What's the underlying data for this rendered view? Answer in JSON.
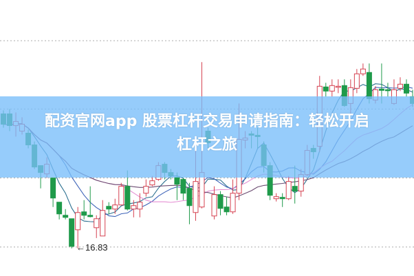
{
  "banner": {
    "title_line1": "配资官网app 股票杠杆交易申请指南：轻松开启",
    "title_line2": "杠杆之旅"
  },
  "chart_data": {
    "type": "candlestick",
    "title": "",
    "xlabel": "",
    "ylabel": "",
    "ylim": [
      16.03,
      24.03
    ],
    "grid": true,
    "gridlines": [
      22.85,
      20.87,
      18.87,
      16.87
    ],
    "low_annotation": {
      "text": "←16.83",
      "value": 16.83
    },
    "colors": {
      "up": "#d5404f",
      "down": "#1f9a4a",
      "ma_lines": [
        "#2b6f8f",
        "#3d63b8",
        "#e58fd3",
        "#6a4a70"
      ],
      "banner": "#8ccaf8"
    },
    "candles_ohlc": [
      [
        20.73,
        20.83,
        20.33,
        20.43
      ],
      [
        20.73,
        20.87,
        20.23,
        20.39
      ],
      [
        20.39,
        20.77,
        20.07,
        20.51
      ],
      [
        20.23,
        20.63,
        20.13,
        20.43
      ],
      [
        20.17,
        20.27,
        19.73,
        19.83
      ],
      [
        19.83,
        19.93,
        19.13,
        19.19
      ],
      [
        19.23,
        19.23,
        18.57,
        19.03
      ],
      [
        18.99,
        19.47,
        18.87,
        19.27
      ],
      [
        18.87,
        18.87,
        18.03,
        18.29
      ],
      [
        18.17,
        18.17,
        17.67,
        17.83
      ],
      [
        17.79,
        17.97,
        17.67,
        17.73
      ],
      [
        17.69,
        17.69,
        16.83,
        16.89
      ],
      [
        17.37,
        18.03,
        16.83,
        17.87
      ],
      [
        17.89,
        18.23,
        17.67,
        17.79
      ],
      [
        17.79,
        18.63,
        17.73,
        17.75
      ],
      [
        17.43,
        17.79,
        17.13,
        17.69
      ],
      [
        17.19,
        18.23,
        17.19,
        17.93
      ],
      [
        18.05,
        18.17,
        17.83,
        17.97
      ],
      [
        17.97,
        18.27,
        17.83,
        18.09
      ],
      [
        18.09,
        18.73,
        18.07,
        18.63
      ],
      [
        18.63,
        19.09,
        17.93,
        17.97
      ],
      [
        17.97,
        18.23,
        17.73,
        18.07
      ],
      [
        17.97,
        18.43,
        17.73,
        18.17
      ],
      [
        18.43,
        18.83,
        18.33,
        18.63
      ],
      [
        18.67,
        18.93,
        18.63,
        18.79
      ],
      [
        18.83,
        19.33,
        18.79,
        19.23
      ],
      [
        19.27,
        19.33,
        18.83,
        19.03
      ],
      [
        19.03,
        19.13,
        18.83,
        18.93
      ],
      [
        18.89,
        19.03,
        18.23,
        18.69
      ],
      [
        18.83,
        18.87,
        18.23,
        18.43
      ],
      [
        18.57,
        18.73,
        17.53,
        18.07
      ],
      [
        17.87,
        19.83,
        17.63,
        18.77
      ],
      [
        18.03,
        22.23,
        17.99,
        19.03
      ],
      [
        20.23,
        20.33,
        19.73,
        19.89
      ],
      [
        17.77,
        18.63,
        17.67,
        18.39
      ],
      [
        18.39,
        18.49,
        17.79,
        17.99
      ],
      [
        18.03,
        18.33,
        17.79,
        17.89
      ],
      [
        17.89,
        18.83,
        17.83,
        18.43
      ],
      [
        18.43,
        21.03,
        18.23,
        19.99
      ],
      [
        19.97,
        20.23,
        19.73,
        20.03
      ],
      [
        20.15,
        20.23,
        19.73,
        20.11
      ],
      [
        20.11,
        20.33,
        19.73,
        20.07
      ],
      [
        19.83,
        19.93,
        19.03,
        19.23
      ],
      [
        19.23,
        19.33,
        18.23,
        18.37
      ],
      [
        18.27,
        18.43,
        18.19,
        18.33
      ],
      [
        18.31,
        18.43,
        18.03,
        18.27
      ],
      [
        18.27,
        18.93,
        18.23,
        18.77
      ],
      [
        18.63,
        19.23,
        18.13,
        18.49
      ],
      [
        18.49,
        19.13,
        18.33,
        18.97
      ],
      [
        18.97,
        19.83,
        18.93,
        19.67
      ],
      [
        19.73,
        19.83,
        19.43,
        19.63
      ],
      [
        19.79,
        21.83,
        19.63,
        21.53
      ],
      [
        21.51,
        21.63,
        21.23,
        21.39
      ],
      [
        21.39,
        21.73,
        21.23,
        21.55
      ],
      [
        21.51,
        21.73,
        21.33,
        21.53
      ],
      [
        21.55,
        21.73,
        20.93,
        20.97
      ],
      [
        21.03,
        21.73,
        20.73,
        21.49
      ],
      [
        21.47,
        22.03,
        21.33,
        21.89
      ],
      [
        21.89,
        22.19,
        21.83,
        22.03
      ],
      [
        21.93,
        22.19,
        21.03,
        21.17
      ],
      [
        21.13,
        21.53,
        21.03,
        21.43
      ],
      [
        21.45,
        22.19,
        21.03,
        21.41
      ],
      [
        21.43,
        21.63,
        21.23,
        21.41
      ],
      [
        21.03,
        21.73,
        20.99,
        21.43
      ],
      [
        21.47,
        21.79,
        21.39,
        21.59
      ],
      [
        21.59,
        21.73,
        21.23,
        21.33
      ],
      [
        21.23,
        21.43,
        20.93,
        21.03
      ]
    ]
  }
}
